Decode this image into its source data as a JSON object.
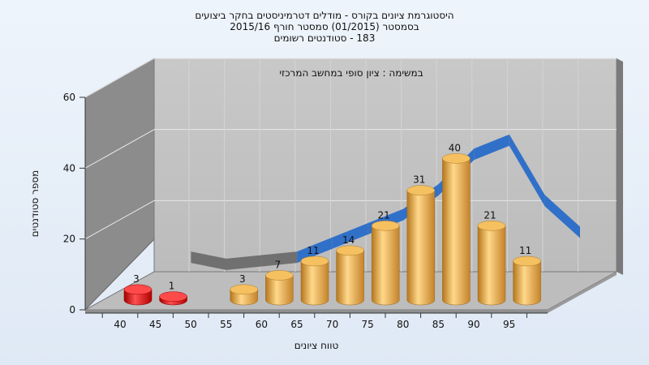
{
  "chart_data": {
    "type": "bar",
    "title_lines": [
      "היסטוגרמת ציונים בקורס - מודלים דטרמיניסטים בחקר ביצועים",
      "בסמסטר  (01/2015)  סמסטר חורף  2015/16",
      "183 - סטודנטים רשומים"
    ],
    "subtitle": "במשימה : ציון סופי במחשב המרכזי",
    "xlabel": "טווח ציונים",
    "ylabel": "מספר סטודנטים",
    "ylim": [
      0,
      60
    ],
    "yticks": [
      0,
      20,
      40,
      60
    ],
    "x_tick_labels": [
      "40",
      "45",
      "50",
      "55",
      "60",
      "65",
      "70",
      "75",
      "80",
      "85",
      "90",
      "95"
    ],
    "categories": [
      "40",
      "45",
      "50",
      "55",
      "60",
      "65",
      "70",
      "75",
      "80",
      "85",
      "90",
      "95"
    ],
    "values": [
      3,
      1,
      null,
      3,
      7,
      11,
      14,
      21,
      31,
      40,
      21,
      11
    ],
    "bar_colors": [
      "#e01010",
      "#e01010",
      null,
      "#e6a840",
      "#e6a840",
      "#e6a840",
      "#e6a840",
      "#e6a840",
      "#e6a840",
      "#e6a840",
      "#e6a840",
      "#e6a840"
    ],
    "curve": [
      {
        "x": 47.5,
        "y": 9
      },
      {
        "x": 52.5,
        "y": 7
      },
      {
        "x": 57.5,
        "y": 8
      },
      {
        "x": 62.5,
        "y": 9
      },
      {
        "x": 67.5,
        "y": 13
      },
      {
        "x": 72.5,
        "y": 17
      },
      {
        "x": 77.5,
        "y": 21
      },
      {
        "x": 82.5,
        "y": 28
      },
      {
        "x": 87.5,
        "y": 38
      },
      {
        "x": 92.5,
        "y": 42
      },
      {
        "x": 97.5,
        "y": 25
      },
      {
        "x": 102.5,
        "y": 16
      }
    ],
    "curve_color_low": "#707070",
    "curve_color_high": "#3070c8",
    "grid": true,
    "legend": "none"
  }
}
